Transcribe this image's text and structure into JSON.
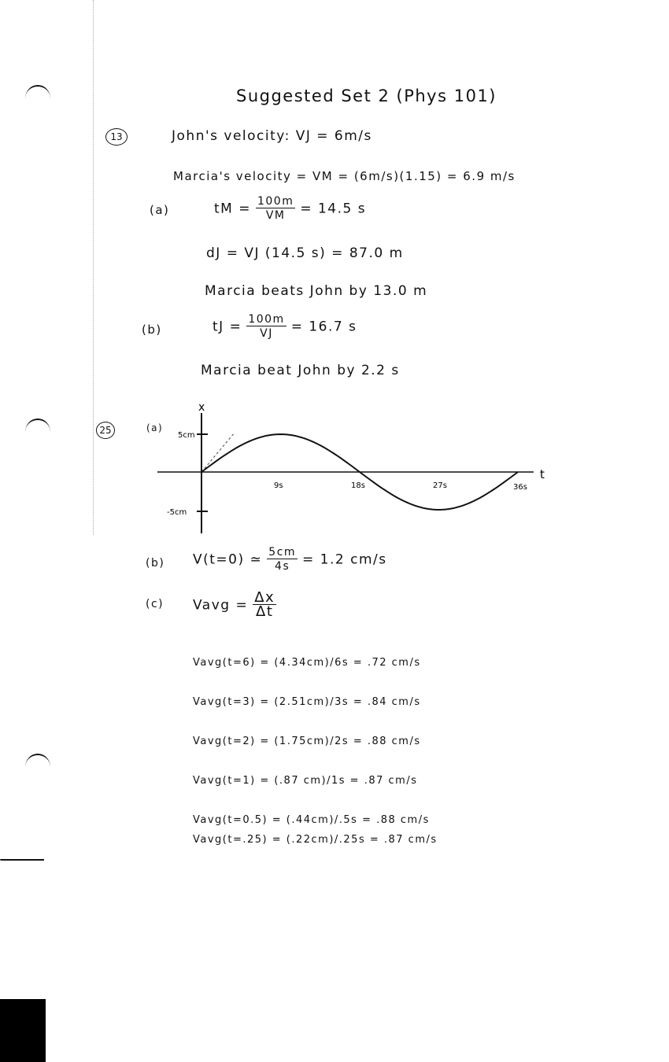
{
  "title": "Suggested Set 2 (Phys 101)",
  "problem13": {
    "number": "13",
    "john_velocity": "John's velocity: VJ = 6m/s",
    "marcia_velocity": "Marcia's velocity = VM = (6m/s)(1.15) = 6.9 m/s",
    "a": {
      "label": "(a)",
      "tm_lhs": "tM =",
      "tm_num": "100m",
      "tm_den": "VM",
      "tm_rhs": "= 14.5 s",
      "dj": "dJ = VJ (14.5 s) = 87.0 m",
      "result": "Marcia beats John by 13.0 m"
    },
    "b": {
      "label": "(b)",
      "tj_lhs": "tJ =",
      "tj_num": "100m",
      "tj_den": "VJ",
      "tj_rhs": "= 16.7 s",
      "result": "Marcia beat John by 2.2 s"
    }
  },
  "problem25": {
    "number": "25",
    "a_label": "(a)",
    "graph": {
      "y_axis_label": "x",
      "x_axis_label": "t",
      "y_ticks": [
        "5cm",
        "-5cm"
      ],
      "x_ticks": [
        "9s",
        "18s",
        "27s",
        "36s"
      ],
      "amplitude_cm": 5,
      "period_s": 36
    },
    "b": {
      "label": "(b)",
      "lhs": "V(t=0) ≃",
      "num": "5cm",
      "den": "4s",
      "rhs": "= 1.2 cm/s"
    },
    "c": {
      "label": "(c)",
      "lhs": "Vavg =",
      "num": "Δx",
      "den": "Δt",
      "rows": [
        "Vavg(t=6) = (4.34cm)/6s = .72 cm/s",
        "Vavg(t=3) = (2.51cm)/3s = .84 cm/s",
        "Vavg(t=2) = (1.75cm)/2s = .88 cm/s",
        "Vavg(t=1) = (.87 cm)/1s = .87 cm/s",
        "Vavg(t=0.5) = (.44cm)/.5s = .88 cm/s",
        "Vavg(t=.25) = (.22cm)/.25s = .87 cm/s"
      ]
    }
  }
}
